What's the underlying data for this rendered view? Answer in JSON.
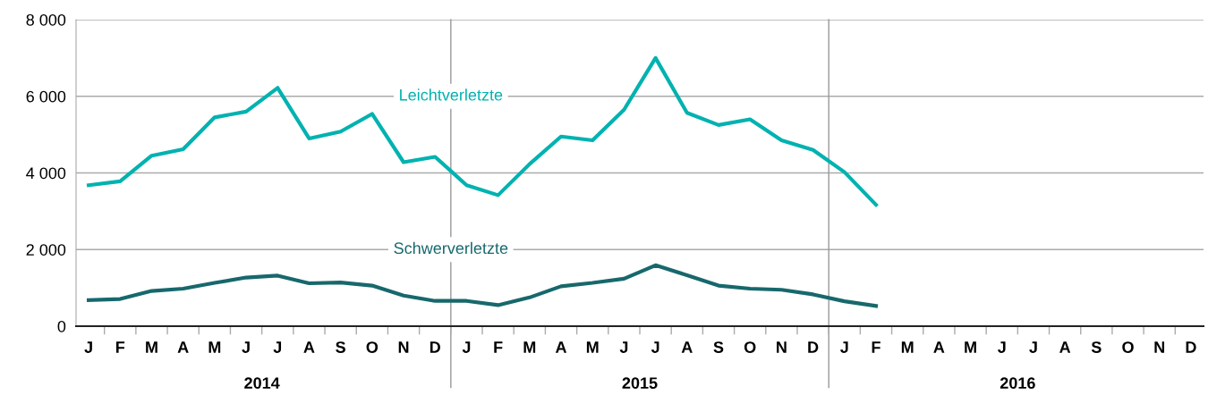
{
  "chart_data": {
    "type": "line",
    "categories": [
      "J",
      "F",
      "M",
      "A",
      "M",
      "J",
      "J",
      "A",
      "S",
      "O",
      "N",
      "D",
      "J",
      "F",
      "M",
      "A",
      "M",
      "J",
      "J",
      "A",
      "S",
      "O",
      "N",
      "D",
      "J",
      "F",
      "M",
      "A",
      "M",
      "J",
      "J",
      "A",
      "S",
      "O",
      "N",
      "D"
    ],
    "series": [
      {
        "name": "Leichtverletzte",
        "color": "#00b2b0",
        "values": [
          3680,
          3780,
          4450,
          4620,
          5450,
          5600,
          6220,
          4900,
          5080,
          5540,
          4280,
          4420,
          3680,
          3420,
          4230,
          4950,
          4850,
          5650,
          7000,
          5570,
          5250,
          5400,
          4850,
          4600,
          4020,
          3170,
          null,
          null,
          null,
          null,
          null,
          null,
          null,
          null,
          null,
          null
        ]
      },
      {
        "name": "Schwerverletzte",
        "color": "#17686c",
        "values": [
          680,
          710,
          920,
          980,
          1130,
          1270,
          1320,
          1120,
          1140,
          1060,
          800,
          660,
          660,
          550,
          750,
          1040,
          1130,
          1240,
          1590,
          1330,
          1060,
          980,
          950,
          830,
          650,
          530,
          null,
          null,
          null,
          null,
          null,
          null,
          null,
          null,
          null,
          null
        ]
      }
    ],
    "ylim": [
      0,
      8000
    ],
    "yticks": [
      0,
      {
        "value": 2000,
        "label": "2 000"
      },
      {
        "value": 4000,
        "label": "4 000"
      },
      {
        "value": 6000,
        "label": "6 000"
      },
      {
        "value": 8000,
        "label": "8 000"
      }
    ],
    "grid": "y",
    "line_style": "solid",
    "annotations": [
      "2014",
      "2015",
      "2016"
    ]
  }
}
